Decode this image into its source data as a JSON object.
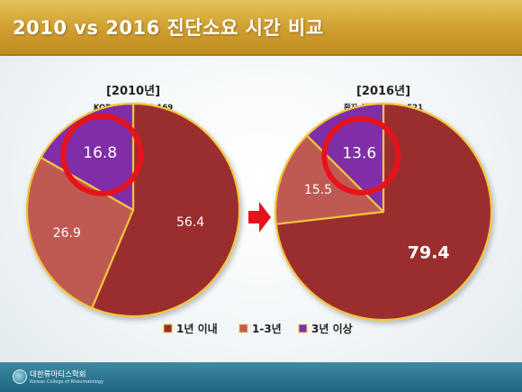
{
  "slide": {
    "title": "2010 vs 2016 진단소요 시간 비교",
    "footer_name": "대한류마티스학회",
    "footer_sub": "Korean College of Rheumatology"
  },
  "colors": {
    "within_1yr": "#9a2d2d",
    "one_to_3yr": "#bf5a52",
    "three_plus": "#7f2fa8",
    "wedge_outline": "#f3c43d",
    "highlight_ring": "#e8121c",
    "arrow": "#e8121c",
    "title_bar": "#d2a233"
  },
  "chart_data": [
    {
      "type": "pie",
      "title": "[2010년]",
      "subtitle": "KORONA, N=3,169",
      "start": "12 o'clock",
      "direction": "clockwise",
      "slices": [
        {
          "label": "1년 이내",
          "value": 56.4,
          "display": "56.4"
        },
        {
          "label": "1-3년",
          "value": 26.9,
          "display": "26.9"
        },
        {
          "label": "3년 이상",
          "value": 16.8,
          "display": "16.8",
          "highlighted": true
        }
      ]
    },
    {
      "type": "pie",
      "title": "[2016년]",
      "subtitle": "환자 설문조사, N=521",
      "start": "12 o'clock",
      "direction": "clockwise",
      "slices": [
        {
          "label": "1년 이내",
          "value": 79.4,
          "display": "79.4"
        },
        {
          "label": "1-3년",
          "value": 15.5,
          "display": "15.5"
        },
        {
          "label": "3년 이상",
          "value": 13.6,
          "display": "13.6",
          "highlighted": true
        }
      ]
    }
  ],
  "legend": {
    "placement": "bottom-center",
    "items": [
      {
        "label": "1년 이내",
        "color_key": "within_1yr"
      },
      {
        "label": "1-3년",
        "color_key": "one_to_3yr"
      },
      {
        "label": "3년 이상",
        "color_key": "three_plus"
      }
    ]
  }
}
